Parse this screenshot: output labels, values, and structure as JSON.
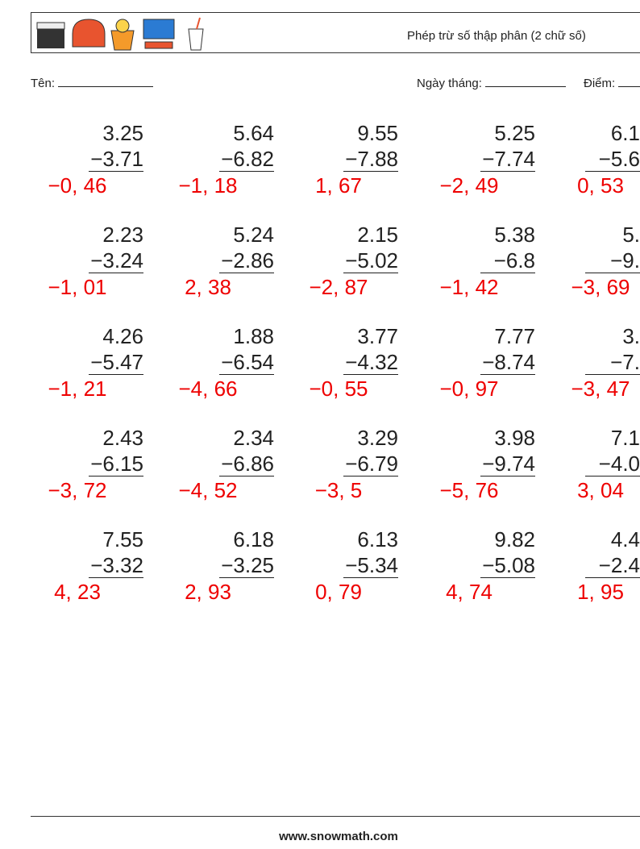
{
  "header": {
    "title": "Phép trừ số thập phân (2 chữ số)"
  },
  "fields": {
    "name_label": "Tên:",
    "date_label": "Ngày tháng:",
    "score_label": "Điểm:"
  },
  "problems": [
    [
      {
        "top": "3.25",
        "bottom": "−3.71",
        "answer": "−0, 46"
      },
      {
        "top": "5.64",
        "bottom": "−6.82",
        "answer": "−1, 18"
      },
      {
        "top": "9.55",
        "bottom": "−7.88",
        "answer": "1, 67"
      },
      {
        "top": "5.25",
        "bottom": "−7.74",
        "answer": "−2, 49"
      },
      {
        "top": "6.1",
        "bottom": "−5.6",
        "answer": "0, 53"
      }
    ],
    [
      {
        "top": "2.23",
        "bottom": "−3.24",
        "answer": "−1, 01"
      },
      {
        "top": "5.24",
        "bottom": "−2.86",
        "answer": "2, 38"
      },
      {
        "top": "2.15",
        "bottom": "−5.02",
        "answer": "−2, 87"
      },
      {
        "top": "5.38",
        "bottom": "−6.8",
        "answer": "−1, 42"
      },
      {
        "top": "5.",
        "bottom": "−9.",
        "answer": "−3, 69"
      }
    ],
    [
      {
        "top": "4.26",
        "bottom": "−5.47",
        "answer": "−1, 21"
      },
      {
        "top": "1.88",
        "bottom": "−6.54",
        "answer": "−4, 66"
      },
      {
        "top": "3.77",
        "bottom": "−4.32",
        "answer": "−0, 55"
      },
      {
        "top": "7.77",
        "bottom": "−8.74",
        "answer": "−0, 97"
      },
      {
        "top": "3.",
        "bottom": "−7.",
        "answer": "−3, 47"
      }
    ],
    [
      {
        "top": "2.43",
        "bottom": "−6.15",
        "answer": "−3, 72"
      },
      {
        "top": "2.34",
        "bottom": "−6.86",
        "answer": "−4, 52"
      },
      {
        "top": "3.29",
        "bottom": "−6.79",
        "answer": "−3, 5"
      },
      {
        "top": "3.98",
        "bottom": "−9.74",
        "answer": "−5, 76"
      },
      {
        "top": "7.1",
        "bottom": "−4.0",
        "answer": "3, 04"
      }
    ],
    [
      {
        "top": "7.55",
        "bottom": "−3.32",
        "answer": "4, 23"
      },
      {
        "top": "6.18",
        "bottom": "−3.25",
        "answer": "2, 93"
      },
      {
        "top": "6.13",
        "bottom": "−5.34",
        "answer": "0, 79"
      },
      {
        "top": "9.82",
        "bottom": "−5.08",
        "answer": "4, 74"
      },
      {
        "top": "4.4",
        "bottom": "−2.4",
        "answer": "1, 95"
      }
    ]
  ],
  "footer": {
    "site": "www.snowmath.com"
  }
}
